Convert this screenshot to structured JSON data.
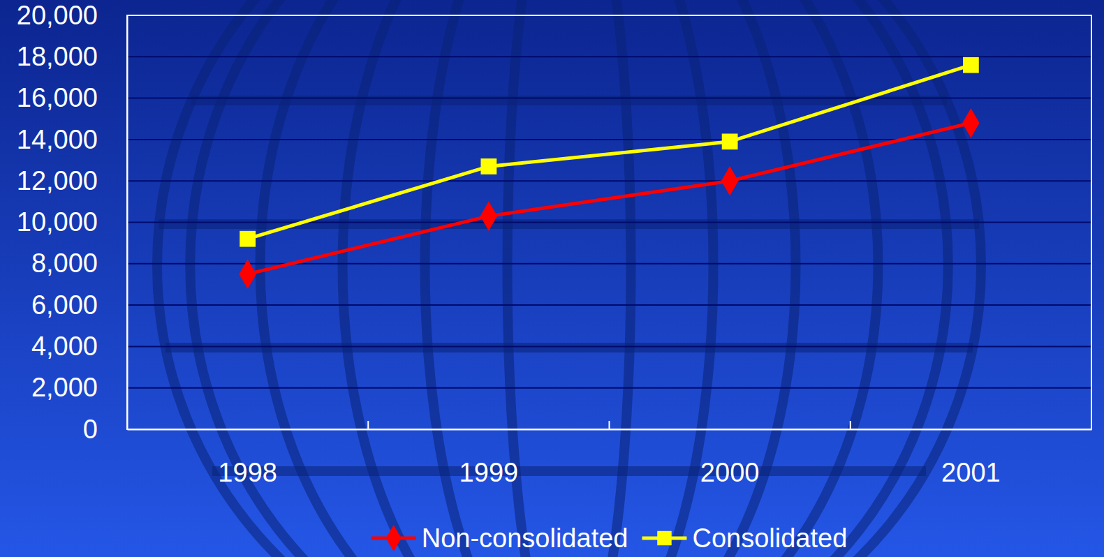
{
  "chart_data": {
    "type": "line",
    "categories": [
      "1998",
      "1999",
      "2000",
      "2001"
    ],
    "series": [
      {
        "name": "Non-consolidated",
        "color": "#ff0000",
        "marker": "diamond",
        "values": [
          7500,
          10300,
          12000,
          14800
        ]
      },
      {
        "name": "Consolidated",
        "color": "#ffff00",
        "marker": "square",
        "values": [
          9200,
          12700,
          13900,
          17600
        ]
      }
    ],
    "ylim": [
      0,
      20000
    ],
    "yticks": [
      0,
      {
        "value": 2000,
        "label": "2,000"
      },
      {
        "value": 4000,
        "label": "4,000"
      },
      {
        "value": 6000,
        "label": "6,000"
      },
      {
        "value": 8000,
        "label": "8,000"
      },
      {
        "value": 10000,
        "label": "10,000"
      },
      {
        "value": 12000,
        "label": "12,000"
      },
      {
        "value": 14000,
        "label": "14,000"
      },
      {
        "value": 16000,
        "label": "16,000"
      },
      {
        "value": 18000,
        "label": "18,000"
      },
      {
        "value": 20000,
        "label": "20,000"
      }
    ],
    "grid": true,
    "legend": "bottom"
  }
}
